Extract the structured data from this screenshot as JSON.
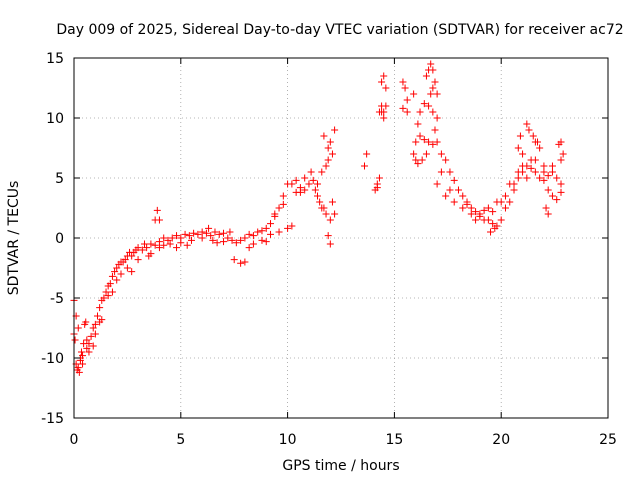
{
  "chart_data": {
    "type": "scatter",
    "title": "Day 009 of 2025, Sidereal Day-to-day VTEC variation (SDTVAR) for receiver ac72",
    "xlabel": "GPS time / hours",
    "ylabel": "SDTVAR / TECUs",
    "xlim": [
      0,
      25
    ],
    "ylim": [
      -15,
      15
    ],
    "xticks": [
      "0",
      "5",
      "10",
      "15",
      "20",
      "25"
    ],
    "yticks": [
      "-15",
      "-10",
      "-5",
      "0",
      "5",
      "10",
      "15"
    ],
    "grid": true,
    "marker": "+",
    "color": "#ff0000",
    "series": [
      {
        "name": "SDTVAR",
        "points": [
          [
            0.0,
            -5.2
          ],
          [
            0.05,
            -8.5
          ],
          [
            0.1,
            -10.5
          ],
          [
            0.15,
            -11.0
          ],
          [
            0.2,
            -10.8
          ],
          [
            0.25,
            -11.2
          ],
          [
            0.3,
            -10.0
          ],
          [
            0.35,
            -9.5
          ],
          [
            0.4,
            -9.8
          ],
          [
            0.45,
            -8.8
          ],
          [
            0.5,
            -7.2
          ],
          [
            0.55,
            -7.0
          ],
          [
            0.6,
            -8.5
          ],
          [
            0.7,
            -8.8
          ],
          [
            0.8,
            -8.2
          ],
          [
            0.9,
            -7.5
          ],
          [
            1.0,
            -7.2
          ],
          [
            1.1,
            -6.5
          ],
          [
            1.2,
            -5.8
          ],
          [
            1.3,
            -5.2
          ],
          [
            1.4,
            -5.0
          ],
          [
            1.5,
            -4.5
          ],
          [
            1.6,
            -4.0
          ],
          [
            1.7,
            -3.8
          ],
          [
            1.8,
            -3.2
          ],
          [
            1.9,
            -2.8
          ],
          [
            2.0,
            -2.5
          ],
          [
            2.1,
            -2.2
          ],
          [
            2.2,
            -2.0
          ],
          [
            2.3,
            -2.0
          ],
          [
            2.4,
            -1.8
          ],
          [
            2.5,
            -1.5
          ],
          [
            2.6,
            -1.2
          ],
          [
            2.7,
            -1.5
          ],
          [
            2.8,
            -1.2
          ],
          [
            2.9,
            -1.0
          ],
          [
            3.0,
            -0.8
          ],
          [
            3.2,
            -1.0
          ],
          [
            3.4,
            -0.8
          ],
          [
            3.6,
            -0.5
          ],
          [
            3.8,
            -0.6
          ],
          [
            4.0,
            -0.3
          ],
          [
            4.2,
            0.0
          ],
          [
            4.4,
            -0.2
          ],
          [
            4.6,
            0.0
          ],
          [
            4.8,
            0.2
          ],
          [
            5.0,
            0.0
          ],
          [
            5.2,
            0.3
          ],
          [
            5.4,
            0.2
          ],
          [
            5.6,
            0.4
          ],
          [
            5.8,
            0.3
          ],
          [
            6.0,
            0.5
          ],
          [
            6.2,
            0.4
          ],
          [
            6.4,
            0.2
          ],
          [
            6.6,
            0.5
          ],
          [
            6.8,
            0.3
          ],
          [
            7.0,
            0.4
          ],
          [
            7.2,
            0.0
          ],
          [
            7.4,
            -0.2
          ],
          [
            7.6,
            -0.4
          ],
          [
            7.8,
            -0.2
          ],
          [
            8.0,
            0.0
          ],
          [
            8.2,
            0.3
          ],
          [
            8.4,
            0.2
          ],
          [
            8.6,
            0.5
          ],
          [
            8.8,
            0.6
          ],
          [
            9.0,
            0.8
          ],
          [
            9.2,
            1.2
          ],
          [
            9.4,
            1.8
          ],
          [
            9.6,
            2.5
          ],
          [
            9.8,
            3.5
          ],
          [
            10.0,
            4.5
          ],
          [
            10.2,
            4.5
          ],
          [
            10.4,
            4.8
          ],
          [
            10.6,
            4.2
          ],
          [
            10.8,
            5.0
          ],
          [
            11.0,
            4.5
          ],
          [
            11.2,
            4.8
          ],
          [
            11.4,
            3.5
          ],
          [
            11.6,
            2.5
          ],
          [
            11.8,
            2.0
          ],
          [
            12.0,
            1.5
          ],
          [
            12.1,
            3.0
          ],
          [
            12.2,
            2.0
          ],
          [
            0.0,
            -8.0
          ],
          [
            0.3,
            -10.2
          ],
          [
            0.6,
            -9.2
          ],
          [
            1.0,
            -8.0
          ],
          [
            1.3,
            -6.8
          ],
          [
            1.6,
            -4.8
          ],
          [
            2.0,
            -3.5
          ],
          [
            2.5,
            -2.5
          ],
          [
            3.0,
            -1.8
          ],
          [
            3.5,
            -1.5
          ],
          [
            4.0,
            -0.8
          ],
          [
            4.5,
            -0.5
          ],
          [
            5.0,
            -0.4
          ],
          [
            5.5,
            -0.2
          ],
          [
            6.0,
            0.0
          ],
          [
            6.5,
            -0.2
          ],
          [
            7.0,
            -0.3
          ],
          [
            7.5,
            -1.8
          ],
          [
            8.0,
            -2.0
          ],
          [
            7.8,
            -2.1
          ],
          [
            8.4,
            -0.5
          ],
          [
            8.8,
            -0.2
          ],
          [
            9.2,
            0.3
          ],
          [
            9.6,
            0.5
          ],
          [
            10.0,
            0.8
          ],
          [
            9.4,
            2.0
          ],
          [
            9.8,
            2.8
          ],
          [
            10.4,
            3.8
          ],
          [
            10.8,
            4.0
          ],
          [
            11.3,
            4.0
          ],
          [
            11.6,
            5.5
          ],
          [
            11.8,
            6.0
          ],
          [
            11.9,
            6.5
          ],
          [
            12.0,
            8.0
          ],
          [
            11.7,
            8.5
          ],
          [
            11.9,
            7.5
          ],
          [
            12.1,
            7.0
          ],
          [
            12.0,
            -0.5
          ],
          [
            11.9,
            0.2
          ],
          [
            12.2,
            9.0
          ],
          [
            11.5,
            3.0
          ],
          [
            11.7,
            2.5
          ],
          [
            3.9,
            2.3
          ],
          [
            3.8,
            1.5
          ],
          [
            4.0,
            1.5
          ],
          [
            13.6,
            6.0
          ],
          [
            13.7,
            7.0
          ],
          [
            14.1,
            4.0
          ],
          [
            14.2,
            4.5
          ],
          [
            14.3,
            5.0
          ],
          [
            14.2,
            4.2
          ],
          [
            14.3,
            10.5
          ],
          [
            14.4,
            11.0
          ],
          [
            14.5,
            10.0
          ],
          [
            14.4,
            10.5
          ],
          [
            14.5,
            10.5
          ],
          [
            14.4,
            13.0
          ],
          [
            14.5,
            13.5
          ],
          [
            14.6,
            12.5
          ],
          [
            14.6,
            11.0
          ],
          [
            15.4,
            13.0
          ],
          [
            15.5,
            12.5
          ],
          [
            15.6,
            11.5
          ],
          [
            15.4,
            10.8
          ],
          [
            15.6,
            10.5
          ],
          [
            15.9,
            7.0
          ],
          [
            16.0,
            6.5
          ],
          [
            16.1,
            6.2
          ],
          [
            16.0,
            8.0
          ],
          [
            16.2,
            8.5
          ],
          [
            16.4,
            8.2
          ],
          [
            16.6,
            8.0
          ],
          [
            16.8,
            7.8
          ],
          [
            16.2,
            10.5
          ],
          [
            16.4,
            11.2
          ],
          [
            16.6,
            11.0
          ],
          [
            16.8,
            10.5
          ],
          [
            17.0,
            10.0
          ],
          [
            16.5,
            13.5
          ],
          [
            16.6,
            14.0
          ],
          [
            16.7,
            14.5
          ],
          [
            16.8,
            14.0
          ],
          [
            16.9,
            13.0
          ],
          [
            16.8,
            12.5
          ],
          [
            17.0,
            12.0
          ],
          [
            16.9,
            9.0
          ],
          [
            17.0,
            8.0
          ],
          [
            17.2,
            7.0
          ],
          [
            17.4,
            6.5
          ],
          [
            17.6,
            5.5
          ],
          [
            17.8,
            4.8
          ],
          [
            18.0,
            4.0
          ],
          [
            18.2,
            3.5
          ],
          [
            18.4,
            3.0
          ],
          [
            18.6,
            2.5
          ],
          [
            18.8,
            2.2
          ],
          [
            19.0,
            2.0
          ],
          [
            19.2,
            2.3
          ],
          [
            19.4,
            1.5
          ],
          [
            19.6,
            1.2
          ],
          [
            19.8,
            1.0
          ],
          [
            19.5,
            0.5
          ],
          [
            19.7,
            0.8
          ],
          [
            20.0,
            1.5
          ],
          [
            20.2,
            2.5
          ],
          [
            20.4,
            3.0
          ],
          [
            20.6,
            4.0
          ],
          [
            20.8,
            5.0
          ],
          [
            21.0,
            5.5
          ],
          [
            21.2,
            6.0
          ],
          [
            21.4,
            5.8
          ],
          [
            21.6,
            5.5
          ],
          [
            21.8,
            5.0
          ],
          [
            22.0,
            4.8
          ],
          [
            22.2,
            5.2
          ],
          [
            22.4,
            5.5
          ],
          [
            22.6,
            5.0
          ],
          [
            22.8,
            4.5
          ],
          [
            17.0,
            4.5
          ],
          [
            17.4,
            3.5
          ],
          [
            17.8,
            3.0
          ],
          [
            18.2,
            2.5
          ],
          [
            18.6,
            2.0
          ],
          [
            19.0,
            1.8
          ],
          [
            19.4,
            2.5
          ],
          [
            19.8,
            3.0
          ],
          [
            20.2,
            3.5
          ],
          [
            20.6,
            4.5
          ],
          [
            21.0,
            6.0
          ],
          [
            21.4,
            6.5
          ],
          [
            21.6,
            8.0
          ],
          [
            21.8,
            7.5
          ],
          [
            22.0,
            6.0
          ],
          [
            22.2,
            4.0
          ],
          [
            22.4,
            3.5
          ],
          [
            22.6,
            3.2
          ],
          [
            22.8,
            3.8
          ],
          [
            21.2,
            9.5
          ],
          [
            21.3,
            9.0
          ],
          [
            21.5,
            8.5
          ],
          [
            21.7,
            8.0
          ],
          [
            20.8,
            7.5
          ],
          [
            20.9,
            8.5
          ],
          [
            21.0,
            7.0
          ],
          [
            22.7,
            7.8
          ],
          [
            22.8,
            8.0
          ],
          [
            22.9,
            7.0
          ],
          [
            22.1,
            2.5
          ],
          [
            22.2,
            2.0
          ],
          [
            17.2,
            5.5
          ],
          [
            17.6,
            4.0
          ],
          [
            18.4,
            2.8
          ],
          [
            18.8,
            1.5
          ],
          [
            19.2,
            1.5
          ],
          [
            19.6,
            2.2
          ],
          [
            20.0,
            3.0
          ],
          [
            20.4,
            4.5
          ],
          [
            20.8,
            5.5
          ],
          [
            21.2,
            5.0
          ],
          [
            21.6,
            6.5
          ],
          [
            22.0,
            5.5
          ],
          [
            22.4,
            6.0
          ],
          [
            22.8,
            6.5
          ],
          [
            16.3,
            6.5
          ],
          [
            16.5,
            7.0
          ],
          [
            16.1,
            9.5
          ],
          [
            15.9,
            12.0
          ],
          [
            16.7,
            12.0
          ],
          [
            3.3,
            -0.5
          ],
          [
            3.6,
            -1.3
          ],
          [
            2.2,
            -3.0
          ],
          [
            1.8,
            -4.5
          ],
          [
            0.9,
            -9.0
          ],
          [
            0.2,
            -7.5
          ],
          [
            0.1,
            -6.5
          ],
          [
            0.4,
            -10.5
          ],
          [
            0.7,
            -9.5
          ],
          [
            1.2,
            -7.0
          ],
          [
            2.7,
            -2.8
          ],
          [
            4.2,
            -0.6
          ],
          [
            4.8,
            -0.8
          ],
          [
            5.3,
            -0.6
          ],
          [
            6.3,
            0.8
          ],
          [
            6.7,
            -0.4
          ],
          [
            7.3,
            0.5
          ],
          [
            8.2,
            -0.8
          ],
          [
            9.0,
            -0.3
          ],
          [
            10.2,
            1.0
          ],
          [
            10.6,
            3.8
          ],
          [
            11.1,
            5.5
          ],
          [
            11.4,
            4.5
          ]
        ]
      }
    ]
  }
}
